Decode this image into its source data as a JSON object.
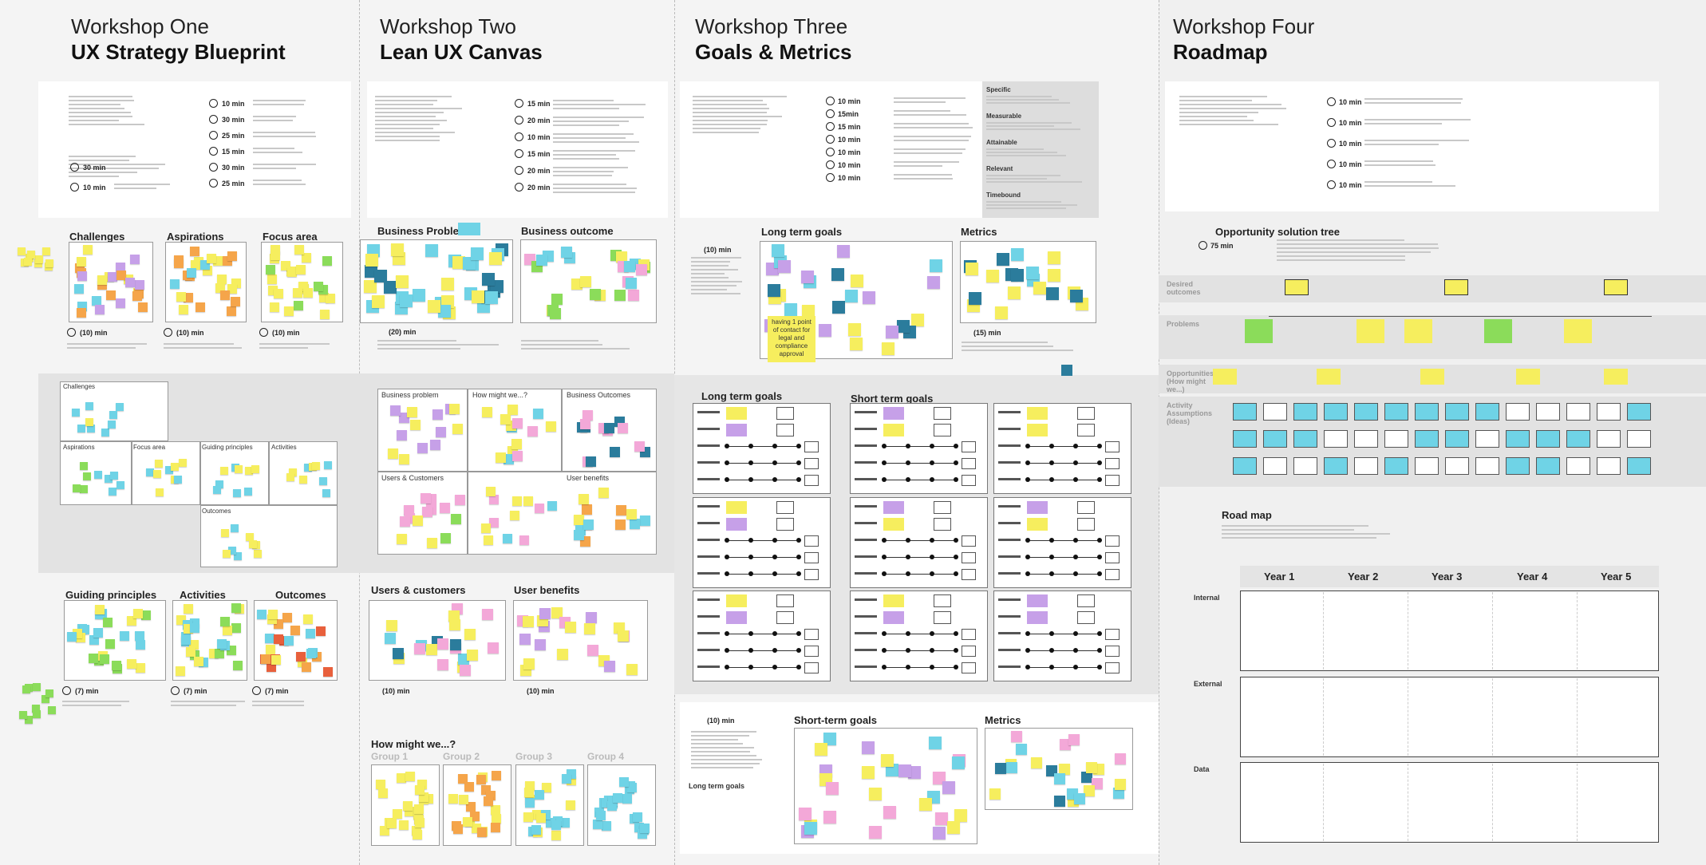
{
  "workshops": [
    {
      "label": "Workshop One",
      "title": "UX Strategy Blueprint"
    },
    {
      "label": "Workshop Two",
      "title": "Lean UX Canvas"
    },
    {
      "label": "Workshop Three",
      "title": "Goals & Metrics"
    },
    {
      "label": "Workshop Four",
      "title": "Roadmap"
    }
  ],
  "w1": {
    "agenda_times": [
      "30 min",
      "10 min",
      "10 min",
      "30 min",
      "25 min",
      "15 min",
      "30 min",
      "25 min"
    ],
    "sections": [
      "Challenges",
      "Aspirations",
      "Focus area",
      "Guiding principles",
      "Activities",
      "Outcomes"
    ],
    "times": [
      "(10) min",
      "(10) min",
      "(10) min",
      "(7) min",
      "(7) min",
      "(7) min"
    ],
    "canvas": [
      "Challenges",
      "Aspirations",
      "Focus area",
      "Guiding principles",
      "Activities",
      "Outcomes"
    ]
  },
  "w2": {
    "agenda_times": [
      "15 min",
      "20 min",
      "10 min",
      "15 min",
      "20 min",
      "20 min"
    ],
    "sections": [
      "Business Problem",
      "Business outcome",
      "Users & customers",
      "User benefits"
    ],
    "times": [
      "(20) min",
      "(10) min",
      "(10) min"
    ],
    "canvas": [
      "Business problem",
      "How might we...?",
      "Business Outcomes",
      "Users & Customers",
      "User benefits"
    ],
    "hmw": "How might we...?",
    "groups": [
      "Group 1",
      "Group 2",
      "Group 3",
      "Group 4"
    ]
  },
  "w3": {
    "agenda_times": [
      "10 min",
      "15min",
      "15 min",
      "10 min",
      "10 min",
      "10 min",
      "10 min"
    ],
    "smart": [
      "Specific",
      "Measurable",
      "Attainable",
      "Relevant",
      "Timebound"
    ],
    "sections": [
      "Long term goals",
      "Metrics"
    ],
    "times": [
      "(10) min",
      "(15) min"
    ],
    "sticky": "having 1 point of contact for legal and compliance approval",
    "grid_titles": [
      "Long term goals",
      "Short term goals"
    ],
    "bottom": [
      "Short-term goals",
      "Metrics"
    ],
    "bottom_time": "(10) min",
    "bottom_label": "Long term goals"
  },
  "w4": {
    "agenda_times": [
      "10 min",
      "10 min",
      "10 min",
      "10 min",
      "10 min"
    ],
    "ost_title": "Opportunity solution tree",
    "ost_time": "75 min",
    "bands": [
      "Desired outcomes",
      "Problems",
      "Opportunities (How might we...)",
      "Activity Assumptions (Ideas)"
    ],
    "roadmap_title": "Road map",
    "years": [
      "Year 1",
      "Year 2",
      "Year 3",
      "Year 4",
      "Year 5"
    ],
    "rows": [
      "Internal",
      "External",
      "Data"
    ]
  }
}
